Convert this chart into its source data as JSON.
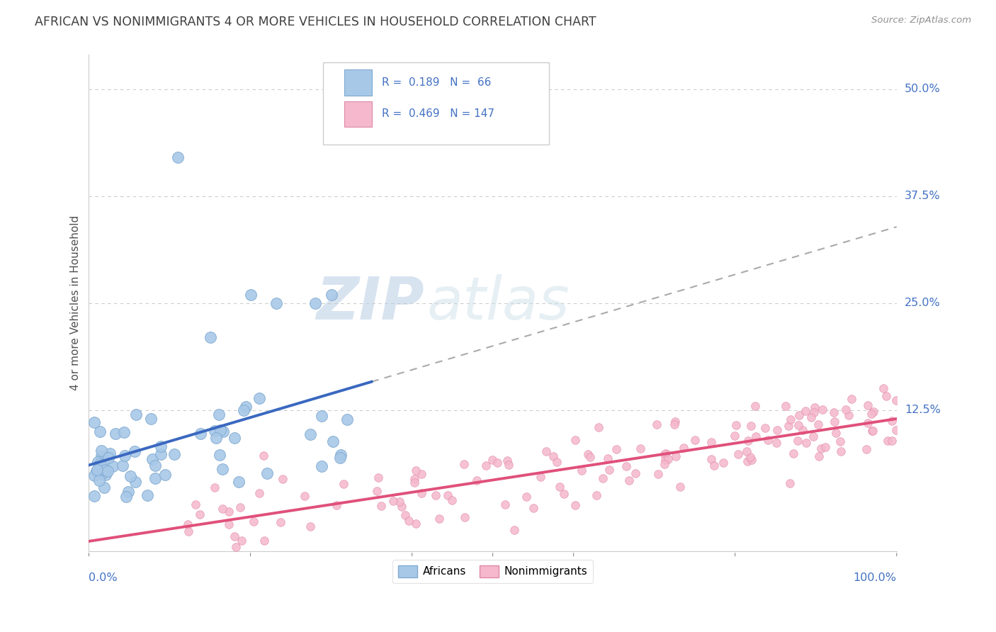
{
  "title": "AFRICAN VS NONIMMIGRANTS 4 OR MORE VEHICLES IN HOUSEHOLD CORRELATION CHART",
  "source": "Source: ZipAtlas.com",
  "ylabel": "4 or more Vehicles in Household",
  "ytick_labels": [
    "12.5%",
    "25.0%",
    "37.5%",
    "50.0%"
  ],
  "ytick_values": [
    0.125,
    0.25,
    0.375,
    0.5
  ],
  "xlim": [
    0,
    1.0
  ],
  "ylim": [
    -0.04,
    0.54
  ],
  "africans_R": 0.189,
  "africans_N": 66,
  "nonimmigrants_R": 0.469,
  "nonimmigrants_N": 147,
  "legend_labels": [
    "Africans",
    "Nonimmigrants"
  ],
  "african_color": "#a8c8e8",
  "african_edge": "#80aad0",
  "african_line_color": "#3a68c0",
  "nonimmigrant_color": "#f5b8cc",
  "nonimmigrant_edge": "#e088a8",
  "nonimmigrant_line_color": "#e0507a",
  "watermark_zip": "ZIP",
  "watermark_atlas": "atlas",
  "title_color": "#404040",
  "source_color": "#909090",
  "axis_label_color": "#4472c4",
  "grid_color": "#cccccc",
  "background_color": "#ffffff",
  "legend_text_color": "#4472c4"
}
